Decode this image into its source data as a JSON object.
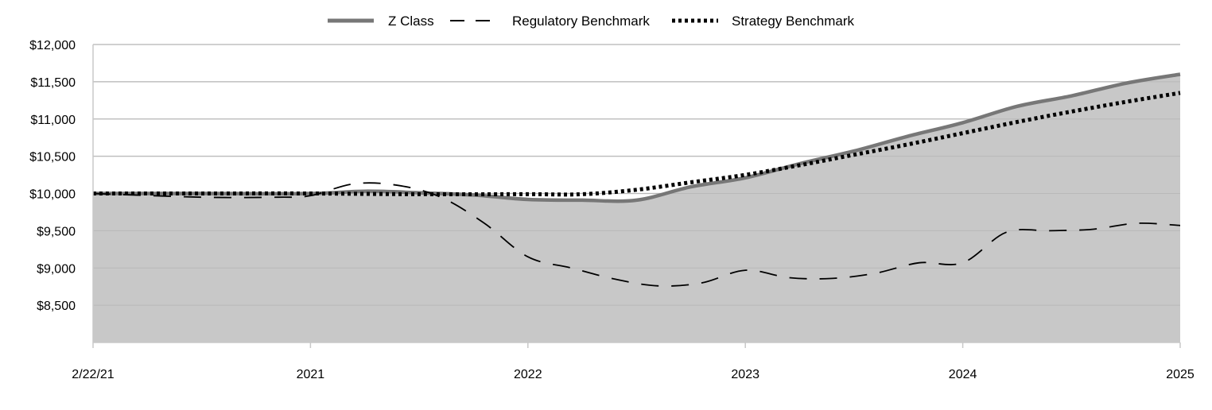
{
  "chart_data": {
    "type": "area",
    "x_tick_labels": [
      "2/22/21",
      "2021",
      "2022",
      "2023",
      "2024",
      "2025"
    ],
    "y_tick_labels": [
      "$8,500",
      "$9,000",
      "$9,500",
      "$10,000",
      "$10,500",
      "$11,000",
      "$11,500",
      "$12,000"
    ],
    "ylim": [
      8000,
      12000
    ],
    "xlim": [
      0,
      5
    ],
    "grid": "horizontal",
    "legend_position": "top-center",
    "series": [
      {
        "name": "Z Class",
        "style": "solid-area",
        "color": "#777777",
        "fill": "#c8c8c8",
        "x": [
          0,
          0.5,
          1.0,
          1.25,
          1.5,
          1.75,
          2.0,
          2.25,
          2.5,
          2.75,
          3.0,
          3.25,
          3.5,
          3.75,
          4.0,
          4.25,
          4.5,
          4.75,
          5.0
        ],
        "values": [
          10000,
          10000,
          10000,
          10030,
          10010,
          9980,
          9920,
          9910,
          9910,
          10090,
          10210,
          10400,
          10570,
          10770,
          10950,
          11170,
          11310,
          11480,
          11600
        ]
      },
      {
        "name": "Regulatory Benchmark",
        "style": "dashed",
        "color": "#000000",
        "x": [
          0,
          0.5,
          0.85,
          1.0,
          1.2,
          1.4,
          1.6,
          1.8,
          2.0,
          2.2,
          2.4,
          2.6,
          2.8,
          3.0,
          3.2,
          3.4,
          3.6,
          3.8,
          4.0,
          4.2,
          4.4,
          4.6,
          4.8,
          5.0
        ],
        "values": [
          10000,
          9950,
          9950,
          9970,
          10130,
          10110,
          9950,
          9600,
          9150,
          9000,
          8850,
          8760,
          8800,
          8970,
          8870,
          8860,
          8930,
          9070,
          9070,
          9480,
          9500,
          9520,
          9600,
          9570
        ]
      },
      {
        "name": "Strategy Benchmark",
        "style": "dotted",
        "color": "#000000",
        "x": [
          0,
          0.5,
          1.0,
          1.5,
          2.0,
          2.25,
          2.5,
          2.75,
          3.0,
          3.25,
          3.5,
          3.75,
          4.0,
          4.25,
          4.5,
          4.75,
          5.0
        ],
        "values": [
          10000,
          10000,
          10000,
          9990,
          9990,
          9990,
          10050,
          10150,
          10250,
          10380,
          10520,
          10660,
          10810,
          10960,
          11100,
          11230,
          11350
        ]
      }
    ]
  }
}
